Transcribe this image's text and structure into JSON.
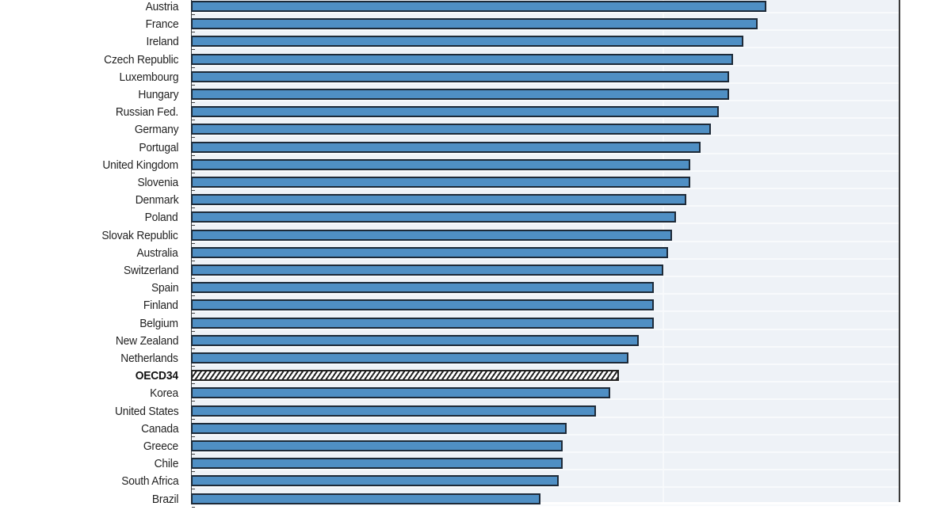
{
  "chart_data": {
    "type": "bar",
    "orientation": "horizontal",
    "title": "",
    "xlabel": "",
    "ylabel": "",
    "value_scale_note": "No axis ticks visible; values are bar lengths as % of visible plot width (0 at left axis, 100 at right border)",
    "xlim": [
      0,
      100
    ],
    "grid": true,
    "legend": null,
    "categories": [
      "Austria",
      "France",
      "Ireland",
      "Czech Republic",
      "Luxembourg",
      "Hungary",
      "Russian Fed.",
      "Germany",
      "Portugal",
      "United Kingdom",
      "Slovenia",
      "Denmark",
      "Poland",
      "Slovak Republic",
      "Australia",
      "Switzerland",
      "Spain",
      "Finland",
      "Belgium",
      "New Zealand",
      "Netherlands",
      "OECD34",
      "Korea",
      "United States",
      "Canada",
      "Greece",
      "Chile",
      "South Africa",
      "Brazil"
    ],
    "values": [
      81.4,
      80.2,
      78.1,
      76.7,
      76.1,
      76.1,
      74.7,
      73.5,
      72.1,
      70.6,
      70.6,
      70.1,
      68.6,
      68.0,
      67.5,
      66.8,
      65.5,
      65.5,
      65.5,
      63.3,
      61.9,
      60.5,
      59.3,
      57.3,
      53.1,
      52.6,
      52.6,
      52.0,
      49.4
    ],
    "highlight": {
      "category": "OECD34",
      "style": "hatched"
    },
    "colors": {
      "bar": "#4f8fc4",
      "bar_border": "#1d2a38",
      "plot_bg": "#eef2f7",
      "highlight_pattern": "#222222"
    }
  },
  "rows": [
    {
      "label": "Austria",
      "value": 81.4,
      "hatched": false
    },
    {
      "label": "France",
      "value": 80.2,
      "hatched": false
    },
    {
      "label": "Ireland",
      "value": 78.1,
      "hatched": false
    },
    {
      "label": "Czech Republic",
      "value": 76.7,
      "hatched": false
    },
    {
      "label": "Luxembourg",
      "value": 76.1,
      "hatched": false
    },
    {
      "label": "Hungary",
      "value": 76.1,
      "hatched": false
    },
    {
      "label": "Russian Fed.",
      "value": 74.7,
      "hatched": false
    },
    {
      "label": "Germany",
      "value": 73.5,
      "hatched": false
    },
    {
      "label": "Portugal",
      "value": 72.1,
      "hatched": false
    },
    {
      "label": "United Kingdom",
      "value": 70.6,
      "hatched": false
    },
    {
      "label": "Slovenia",
      "value": 70.6,
      "hatched": false
    },
    {
      "label": "Denmark",
      "value": 70.1,
      "hatched": false
    },
    {
      "label": "Poland",
      "value": 68.6,
      "hatched": false
    },
    {
      "label": "Slovak Republic",
      "value": 68.0,
      "hatched": false
    },
    {
      "label": "Australia",
      "value": 67.5,
      "hatched": false
    },
    {
      "label": "Switzerland",
      "value": 66.8,
      "hatched": false
    },
    {
      "label": "Spain",
      "value": 65.5,
      "hatched": false
    },
    {
      "label": "Finland",
      "value": 65.5,
      "hatched": false
    },
    {
      "label": "Belgium",
      "value": 65.5,
      "hatched": false
    },
    {
      "label": "New Zealand",
      "value": 63.3,
      "hatched": false
    },
    {
      "label": "Netherlands",
      "value": 61.9,
      "hatched": false
    },
    {
      "label": "OECD34",
      "value": 60.5,
      "hatched": true
    },
    {
      "label": "Korea",
      "value": 59.3,
      "hatched": false
    },
    {
      "label": "United States",
      "value": 57.3,
      "hatched": false
    },
    {
      "label": "Canada",
      "value": 53.1,
      "hatched": false
    },
    {
      "label": "Greece",
      "value": 52.6,
      "hatched": false
    },
    {
      "label": "Chile",
      "value": 52.6,
      "hatched": false
    },
    {
      "label": "South Africa",
      "value": 52.0,
      "hatched": false
    },
    {
      "label": "Brazil",
      "value": 49.4,
      "hatched": false
    }
  ]
}
